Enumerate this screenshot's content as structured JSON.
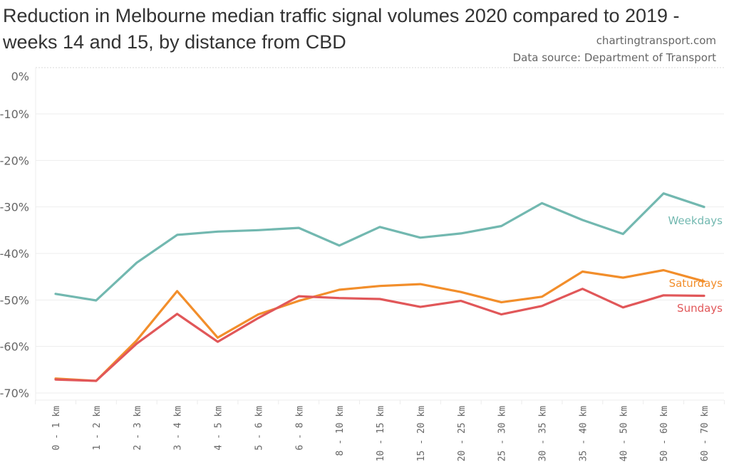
{
  "title": "Reduction in Melbourne median traffic signal volumes 2020 compared to 2019 - weeks 14 and 15, by distance from CBD",
  "credits": {
    "site": "chartingtransport.com",
    "source": "Data source: Department of Transport"
  },
  "chart_data": {
    "type": "line",
    "title": "Reduction in Melbourne median traffic signal volumes 2020 compared to 2019 - weeks 14 and 15, by distance from CBD",
    "xlabel": "",
    "ylabel": "",
    "ylim": [
      -70,
      0
    ],
    "yticks": [
      0,
      -10,
      -20,
      -30,
      -40,
      -50,
      -60,
      -70
    ],
    "ytick_labels": [
      "0%",
      "-10%",
      "-20%",
      "-30%",
      "-40%",
      "-50%",
      "-60%",
      "-70%"
    ],
    "grid": true,
    "legend": "inline-right",
    "categories": [
      "0 - 1 km",
      "1 - 2 km",
      "2 - 3 km",
      "3 - 4 km",
      "4 - 5 km",
      "5 - 6 km",
      "6 - 8 km",
      "8 - 10 km",
      "10 - 15 km",
      "15 - 20 km",
      "20 - 25 km",
      "25 - 30 km",
      "30 - 35 km",
      "35 - 40 km",
      "40 - 50 km",
      "50 - 60 km",
      "60 - 70 km"
    ],
    "series": [
      {
        "name": "Weekdays",
        "color": "#72b8b0",
        "values": [
          -48.7,
          -50.1,
          -42.0,
          -36.0,
          -35.3,
          -35.0,
          -34.5,
          -38.3,
          -34.3,
          -36.6,
          -35.7,
          -34.1,
          -29.2,
          -32.8,
          -35.8,
          -27.1,
          -30.0
        ]
      },
      {
        "name": "Saturdays",
        "color": "#f28e2b",
        "values": [
          -66.9,
          -67.4,
          -58.7,
          -48.1,
          -58.1,
          -53.1,
          -50.2,
          -47.8,
          -47.0,
          -46.6,
          -48.3,
          -50.5,
          -49.3,
          -43.9,
          -45.2,
          -43.6,
          -46.0
        ]
      },
      {
        "name": "Sundays",
        "color": "#e15759",
        "values": [
          -67.1,
          -67.4,
          -59.4,
          -53.0,
          -59.0,
          -53.9,
          -49.2,
          -49.6,
          -49.8,
          -51.5,
          -50.2,
          -53.1,
          -51.3,
          -47.6,
          -51.6,
          -49.0,
          -49.1
        ]
      }
    ]
  }
}
